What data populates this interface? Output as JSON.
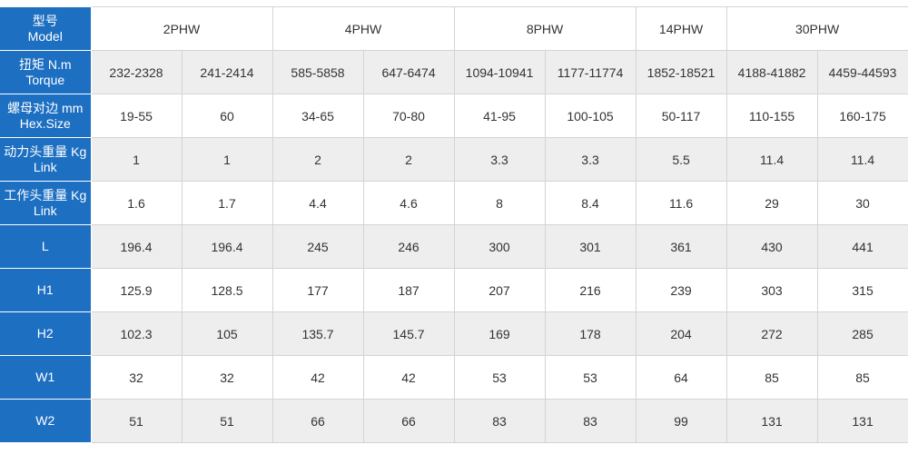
{
  "header": {
    "label": [
      "型号",
      "Model"
    ],
    "groups": [
      "2PHW",
      "4PHW",
      "8PHW",
      "14PHW",
      "30PHW"
    ]
  },
  "rows": [
    {
      "label": [
        "扭矩 N.m",
        "Torque"
      ],
      "values": [
        "232-2328",
        "241-2414",
        "585-5858",
        "647-6474",
        "1094-10941",
        "1177-11774",
        "1852-18521",
        "4188-41882",
        "4459-44593"
      ]
    },
    {
      "label": [
        "螺母对边 mm",
        "Hex.Size"
      ],
      "values": [
        "19-55",
        "60",
        "34-65",
        "70-80",
        "41-95",
        "100-105",
        "50-117",
        "110-155",
        "160-175"
      ]
    },
    {
      "label": [
        "动力头重量 Kg",
        "Link"
      ],
      "values": [
        "1",
        "1",
        "2",
        "2",
        "3.3",
        "3.3",
        "5.5",
        "11.4",
        "11.4"
      ]
    },
    {
      "label": [
        "工作头重量 Kg",
        "Link"
      ],
      "values": [
        "1.6",
        "1.7",
        "4.4",
        "4.6",
        "8",
        "8.4",
        "11.6",
        "29",
        "30"
      ]
    },
    {
      "label": [
        "L"
      ],
      "values": [
        "196.4",
        "196.4",
        "245",
        "246",
        "300",
        "301",
        "361",
        "430",
        "441"
      ]
    },
    {
      "label": [
        "H1"
      ],
      "values": [
        "125.9",
        "128.5",
        "177",
        "187",
        "207",
        "216",
        "239",
        "303",
        "315"
      ]
    },
    {
      "label": [
        "H2"
      ],
      "values": [
        "102.3",
        "105",
        "135.7",
        "145.7",
        "169",
        "178",
        "204",
        "272",
        "285"
      ]
    },
    {
      "label": [
        "W1"
      ],
      "values": [
        "32",
        "32",
        "42",
        "42",
        "53",
        "53",
        "64",
        "85",
        "85"
      ]
    },
    {
      "label": [
        "W2"
      ],
      "values": [
        "51",
        "51",
        "66",
        "66",
        "83",
        "83",
        "99",
        "131",
        "131"
      ]
    }
  ]
}
